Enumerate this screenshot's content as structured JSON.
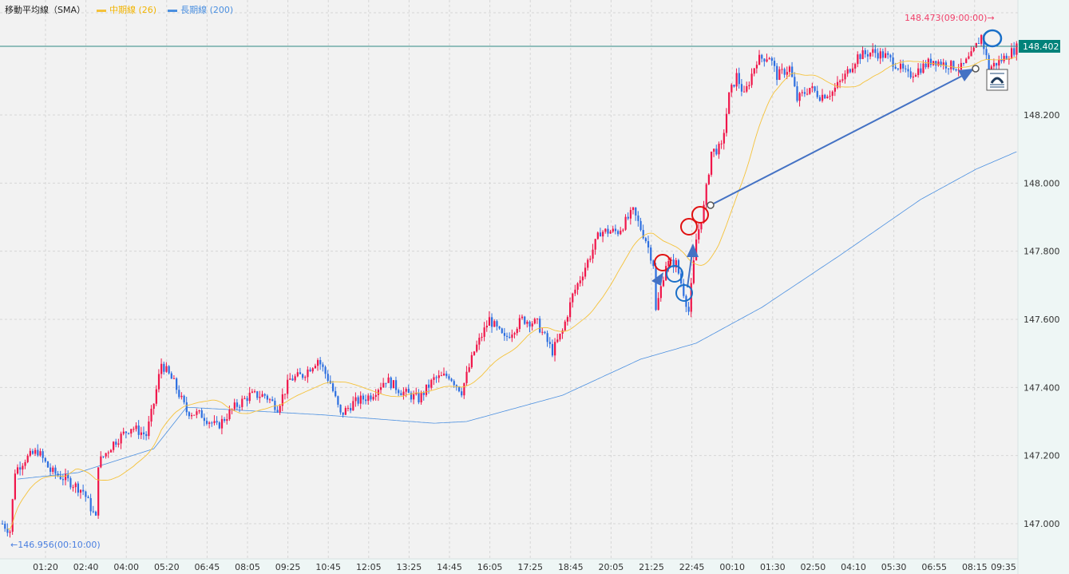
{
  "legend": {
    "indicator": "移動平均線（SMA）",
    "mid_label": "中期線 (26)",
    "long_label": "長期線 (200)"
  },
  "colors": {
    "background": "#f2f2f2",
    "axis_bg": "#eef6f5",
    "up": "#f0164a",
    "down": "#2d6fe0",
    "mid_sma": "#f5c23a",
    "long_sma": "#4a8fe0",
    "current_price": "#00827a",
    "high_label": "#f0406a",
    "low_label": "#4a7fe0",
    "drawing": "#4472c4",
    "circle_red": "#e01010",
    "circle_blue": "#1a6fc8"
  },
  "chart_data": {
    "type": "candlestick",
    "title": "",
    "ylim": [
      146.93,
      148.54
    ],
    "y_ticks": [
      "148.200",
      "148.000",
      "147.800",
      "147.600",
      "147.400",
      "147.200",
      "147.000"
    ],
    "x_ticks": [
      "01:20",
      "02:40",
      "04:00",
      "05:20",
      "06:45",
      "08:05",
      "09:25",
      "10:45",
      "12:05",
      "13:25",
      "14:45",
      "16:05",
      "17:25",
      "18:45",
      "20:05",
      "21:25",
      "22:45",
      "00:10",
      "01:30",
      "02:50",
      "04:10",
      "05:30",
      "06:55",
      "08:15",
      "09:35"
    ],
    "bar_count": 403,
    "close_path": [
      [
        0,
        147.0
      ],
      [
        3,
        146.979
      ],
      [
        5,
        147.155
      ],
      [
        9,
        147.19
      ],
      [
        14,
        147.213
      ],
      [
        19,
        147.155
      ],
      [
        25,
        147.131
      ],
      [
        32,
        147.096
      ],
      [
        37,
        147.014
      ],
      [
        38,
        147.178
      ],
      [
        44,
        147.237
      ],
      [
        51,
        147.284
      ],
      [
        57,
        147.26
      ],
      [
        60,
        147.354
      ],
      [
        63,
        147.471
      ],
      [
        68,
        147.413
      ],
      [
        73,
        147.33
      ],
      [
        79,
        147.319
      ],
      [
        85,
        147.284
      ],
      [
        92,
        147.342
      ],
      [
        98,
        147.377
      ],
      [
        104,
        147.377
      ],
      [
        109,
        147.342
      ],
      [
        114,
        147.424
      ],
      [
        119,
        147.436
      ],
      [
        125,
        147.483
      ],
      [
        130,
        147.413
      ],
      [
        134,
        147.319
      ],
      [
        139,
        147.354
      ],
      [
        146,
        147.377
      ],
      [
        152,
        147.424
      ],
      [
        158,
        147.389
      ],
      [
        165,
        147.366
      ],
      [
        171,
        147.424
      ],
      [
        177,
        147.436
      ],
      [
        182,
        147.389
      ],
      [
        187,
        147.506
      ],
      [
        193,
        147.6
      ],
      [
        199,
        147.541
      ],
      [
        206,
        147.6
      ],
      [
        212,
        147.588
      ],
      [
        218,
        147.506
      ],
      [
        222,
        147.565
      ],
      [
        226,
        147.67
      ],
      [
        233,
        147.788
      ],
      [
        237,
        147.858
      ],
      [
        244,
        147.858
      ],
      [
        250,
        147.916
      ],
      [
        255,
        147.834
      ],
      [
        258,
        147.764
      ],
      [
        259,
        147.623
      ],
      [
        263,
        147.764
      ],
      [
        267,
        147.764
      ],
      [
        272,
        147.623
      ],
      [
        275,
        147.834
      ],
      [
        278,
        147.928
      ],
      [
        281,
        148.092
      ],
      [
        285,
        148.104
      ],
      [
        288,
        148.256
      ],
      [
        291,
        148.315
      ],
      [
        294,
        148.256
      ],
      [
        299,
        148.362
      ],
      [
        304,
        148.373
      ],
      [
        307,
        148.315
      ],
      [
        312,
        148.338
      ],
      [
        315,
        148.245
      ],
      [
        320,
        148.28
      ],
      [
        324,
        148.256
      ],
      [
        329,
        148.268
      ],
      [
        334,
        148.315
      ],
      [
        339,
        148.373
      ],
      [
        345,
        148.385
      ],
      [
        350,
        148.373
      ],
      [
        354,
        148.35
      ],
      [
        359,
        148.315
      ],
      [
        364,
        148.338
      ],
      [
        369,
        148.362
      ],
      [
        373,
        148.35
      ],
      [
        380,
        148.338
      ],
      [
        384,
        148.373
      ],
      [
        388,
        148.432
      ],
      [
        391,
        148.338
      ],
      [
        396,
        148.362
      ],
      [
        402,
        148.397
      ]
    ],
    "long_sma_path": [
      [
        6,
        147.131
      ],
      [
        30,
        147.15
      ],
      [
        60,
        147.22
      ],
      [
        73,
        147.342
      ],
      [
        126,
        147.32
      ],
      [
        171,
        147.295
      ],
      [
        184,
        147.3
      ],
      [
        222,
        147.377
      ],
      [
        253,
        147.483
      ],
      [
        275,
        147.53
      ],
      [
        301,
        147.635
      ],
      [
        332,
        147.788
      ],
      [
        364,
        147.952
      ],
      [
        386,
        148.041
      ],
      [
        402,
        148.092
      ]
    ],
    "current_price": "148.402",
    "high_label": "148.473(09:00:00)→",
    "low_label": "←146.956(00:10:00)",
    "series": [
      {
        "name": "中期線 (26)",
        "kind": "sma",
        "period": 26
      },
      {
        "name": "長期線 (200)",
        "kind": "sma",
        "period": 200
      }
    ]
  }
}
